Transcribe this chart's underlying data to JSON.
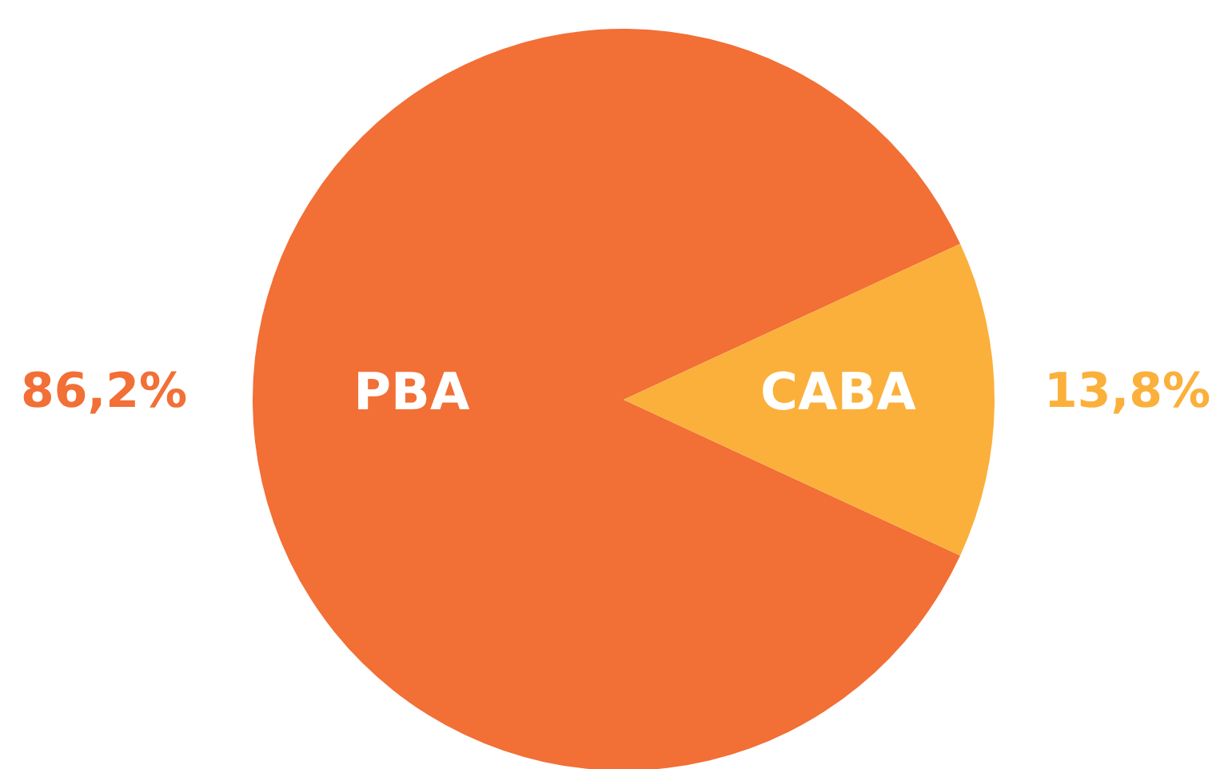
{
  "chart_data": {
    "type": "pie",
    "categories": [
      "PBA",
      "CABA"
    ],
    "values": [
      86.2,
      13.8
    ],
    "colors": [
      "#f26f36",
      "#fbb03b"
    ],
    "value_labels": [
      "86,2%",
      "13,8%"
    ],
    "legend": false
  }
}
